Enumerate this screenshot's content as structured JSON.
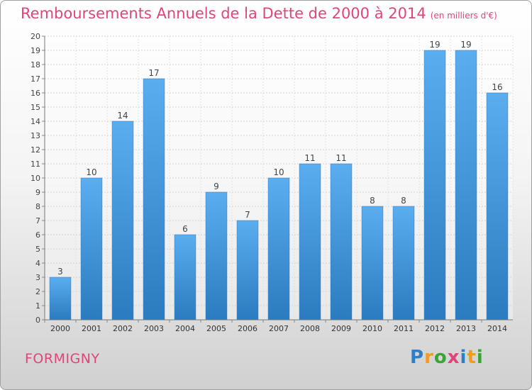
{
  "page": {
    "title": "Remboursements Annuels de la Dette de 2000 à 2014",
    "subtitle": "(en milliers d'€)",
    "place": "FORMIGNY",
    "logo": [
      "P",
      "r",
      "o",
      "x",
      "i",
      "t",
      "i"
    ],
    "logo_colors": [
      "#2f7fc8",
      "#f29b21",
      "#3aa535",
      "#e0457a",
      "#2f7fc8",
      "#f29b21",
      "#3aa535"
    ]
  },
  "chart_data": {
    "type": "bar",
    "title": "Remboursements Annuels de la Dette de 2000 à 2014",
    "subtitle": "(en milliers d'€)",
    "categories": [
      "2000",
      "2001",
      "2002",
      "2003",
      "2004",
      "2005",
      "2006",
      "2007",
      "2008",
      "2009",
      "2010",
      "2011",
      "2012",
      "2013",
      "2014"
    ],
    "values": [
      3,
      10,
      14,
      17,
      6,
      9,
      7,
      10,
      11,
      11,
      8,
      8,
      19,
      19,
      16
    ],
    "ylim": [
      0,
      20
    ],
    "yticks": [
      0,
      1,
      2,
      3,
      4,
      5,
      6,
      7,
      8,
      9,
      10,
      11,
      12,
      13,
      14,
      15,
      16,
      17,
      18,
      19,
      20
    ],
    "xlabel": "",
    "ylabel": "",
    "grid": true,
    "bar_color": "#4a9ee0",
    "bar_color_light": "#5aaef0",
    "bar_color_dark": "#2a7bbf"
  }
}
